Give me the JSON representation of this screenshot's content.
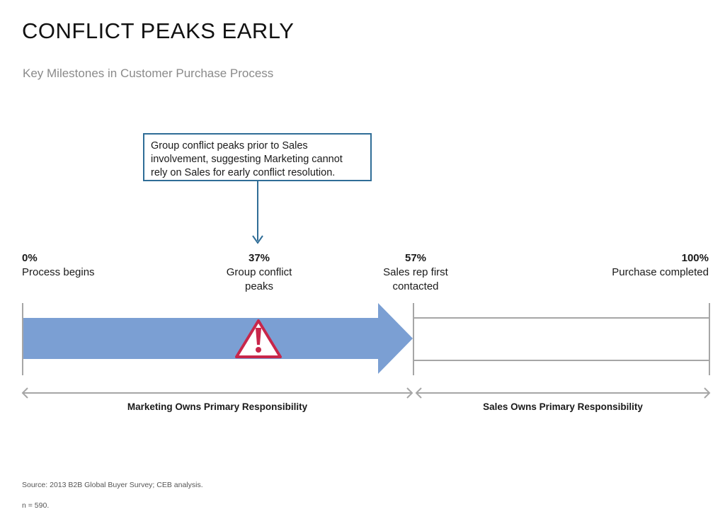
{
  "title": "CONFLICT PEAKS EARLY",
  "subtitle": "Key Milestones in Customer Purchase Process",
  "callout": {
    "lines": [
      "Group conflict peaks prior to Sales",
      "involvement, suggesting Marketing cannot",
      "rely on Sales for early conflict resolution."
    ]
  },
  "milestones": [
    {
      "pct": "0%",
      "label_lines": [
        "Process begins"
      ]
    },
    {
      "pct": "37%",
      "label_lines": [
        "Group conflict",
        "peaks"
      ]
    },
    {
      "pct": "57%",
      "label_lines": [
        "Sales rep first",
        "contacted"
      ]
    },
    {
      "pct": "100%",
      "label_lines": [
        "Purchase completed"
      ]
    }
  ],
  "responsibility": {
    "marketing": "Marketing Owns Primary Responsibility",
    "sales": "Sales Owns Primary Responsibility"
  },
  "icons": {
    "warning": "warning-triangle-icon"
  },
  "colors": {
    "arrow_fill": "#7b9fd3",
    "callout_border": "#2f6d97",
    "warning": "#c8264a",
    "track": "#a6a6a6"
  },
  "footer": {
    "source": "Source: 2013 B2B Global Buyer Survey; CEB analysis.",
    "n": "n = 590."
  }
}
